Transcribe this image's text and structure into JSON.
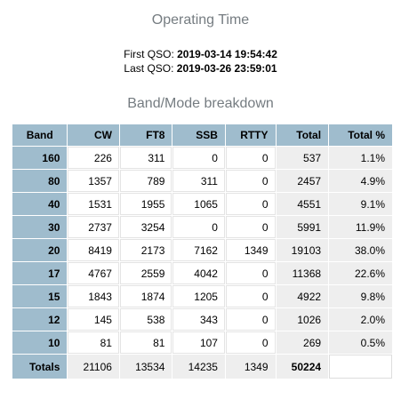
{
  "operating_time": {
    "title": "Operating Time",
    "first_qso_label": "First QSO:",
    "first_qso_value": "2019-03-14 19:54:42",
    "last_qso_label": "Last QSO:",
    "last_qso_value": "2019-03-26 23:59:01"
  },
  "breakdown": {
    "title": "Band/Mode breakdown",
    "headers": [
      "Band",
      "CW",
      "FT8",
      "SSB",
      "RTTY",
      "Total",
      "Total %"
    ],
    "rows": [
      {
        "band": "160",
        "cw": "226",
        "ft8": "311",
        "ssb": "0",
        "rtty": "0",
        "total": "537",
        "pct": "1.1%"
      },
      {
        "band": "80",
        "cw": "1357",
        "ft8": "789",
        "ssb": "311",
        "rtty": "0",
        "total": "2457",
        "pct": "4.9%"
      },
      {
        "band": "40",
        "cw": "1531",
        "ft8": "1955",
        "ssb": "1065",
        "rtty": "0",
        "total": "4551",
        "pct": "9.1%"
      },
      {
        "band": "30",
        "cw": "2737",
        "ft8": "3254",
        "ssb": "0",
        "rtty": "0",
        "total": "5991",
        "pct": "11.9%"
      },
      {
        "band": "20",
        "cw": "8419",
        "ft8": "2173",
        "ssb": "7162",
        "rtty": "1349",
        "total": "19103",
        "pct": "38.0%"
      },
      {
        "band": "17",
        "cw": "4767",
        "ft8": "2559",
        "ssb": "4042",
        "rtty": "0",
        "total": "11368",
        "pct": "22.6%"
      },
      {
        "band": "15",
        "cw": "1843",
        "ft8": "1874",
        "ssb": "1205",
        "rtty": "0",
        "total": "4922",
        "pct": "9.8%"
      },
      {
        "band": "12",
        "cw": "145",
        "ft8": "538",
        "ssb": "343",
        "rtty": "0",
        "total": "1026",
        "pct": "2.0%"
      },
      {
        "band": "10",
        "cw": "81",
        "ft8": "81",
        "ssb": "107",
        "rtty": "0",
        "total": "269",
        "pct": "0.5%"
      }
    ],
    "totals": {
      "label": "Totals",
      "cw": "21106",
      "ft8": "13534",
      "ssb": "14235",
      "rtty": "1349",
      "total": "50224",
      "pct": ""
    }
  },
  "colors": {
    "header_bg": "#9fbccd",
    "total_col_bg": "#eeeeee",
    "title_color": "#757c81"
  }
}
